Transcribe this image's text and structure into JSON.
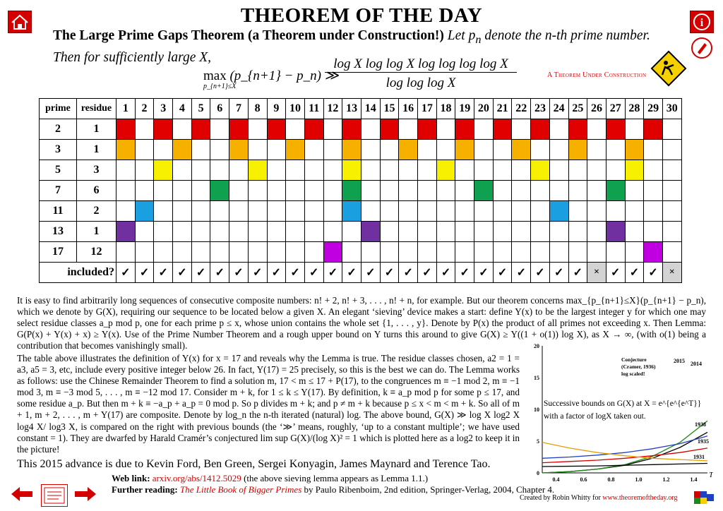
{
  "header": {
    "title": "THEOREM OF THE DAY",
    "theorem_name": "The Large Prime Gaps Theorem (a Theorem under Construction!)",
    "statement_1": "Let",
    "statement_2": "denote the n-th prime number. Then for sufficiently large X,",
    "under_construction": "A Theorem Under Construction"
  },
  "formula": {
    "lhs": "max",
    "lhs_sub": "p_{n+1}≤X",
    "lhs_body": "(p_{n+1} − p_n) ≫",
    "numerator": "log X log log X log log log log X",
    "denominator": "log log log X"
  },
  "table": {
    "col_prime": "prime",
    "col_residue": "residue",
    "columns": [
      "1",
      "2",
      "3",
      "4",
      "5",
      "6",
      "7",
      "8",
      "9",
      "10",
      "11",
      "12",
      "13",
      "14",
      "15",
      "16",
      "17",
      "18",
      "19",
      "20",
      "21",
      "22",
      "23",
      "24",
      "25",
      "26",
      "27",
      "28",
      "29",
      "30"
    ],
    "rows": [
      {
        "prime": "2",
        "residue": "1",
        "color": "#e00000",
        "cells": [
          1,
          3,
          5,
          7,
          9,
          11,
          13,
          15,
          17,
          19,
          21,
          23,
          25,
          27,
          29
        ]
      },
      {
        "prime": "3",
        "residue": "1",
        "color": "#f5b000",
        "cells": [
          1,
          4,
          7,
          10,
          13,
          16,
          19,
          22,
          25,
          28
        ]
      },
      {
        "prime": "5",
        "residue": "3",
        "color": "#f7f000",
        "cells": [
          3,
          8,
          13,
          18,
          23,
          28
        ]
      },
      {
        "prime": "7",
        "residue": "6",
        "color": "#0fa050",
        "cells": [
          6,
          13,
          20,
          27
        ]
      },
      {
        "prime": "11",
        "residue": "2",
        "color": "#1aa0e0",
        "cells": [
          2,
          13,
          24
        ]
      },
      {
        "prime": "13",
        "residue": "1",
        "color": "#7030a0",
        "cells": [
          1,
          14,
          27
        ]
      },
      {
        "prime": "17",
        "residue": "12",
        "color": "#c000e0",
        "cells": [
          12,
          29
        ]
      }
    ],
    "included_label": "included?",
    "check": "✓",
    "cross": "×",
    "excluded": [
      26,
      30
    ]
  },
  "text": {
    "p1": "It is easy to find arbitrarily long sequences of consecutive composite numbers: n! + 2, n! + 3, . . . , n! + n, for example. But our theorem concerns max_{p_{n+1}≤X}(p_{n+1} − p_n), which we denote by G(X), requiring our sequence to be located below a given X. An elegant ‘sieving’ device makes a start: define Y(x) to be the largest integer y for which one may select residue classes a_p mod p, one for each prime p ≤ x, whose union contains the whole set {1, . . . , y}. Denote by P(x) the product of all primes not exceeding x. Then Lemma: G(P(x) + Y(x) + x) ≥ Y(x). Use of the Prime Number Theorem and a rough upper bound on Y turns this around to give G(X) ≥ Y((1 + o(1)) log X), as X → ∞, (with o(1) being a contribution that becomes vanishingly small).",
    "p2": "The table above illustrates the definition of Y(x) for x = 17 and reveals why the Lemma is true. The residue classes chosen, a2 = 1 = a3, a5 = 3, etc, include every positive integer below 26. In fact, Y(17) = 25 precisely, so this is the best we can do. The Lemma works as follows: use the Chinese Remainder Theorem to find a solution m, 17 < m ≤ 17 + P(17), to the congruences m ≡ −1 mod 2, m ≡ −1 mod 3, m ≡ −3 mod 5, . . . , m ≡ −12 mod 17. Consider m + k, for 1 ≤ k ≤ Y(17). By definition, k ≡ a_p mod p for some p ≤ 17, and some residue a_p. But then m + k ≡ −a_p + a_p = 0 mod p. So p divides m + k; and p ≠ m + k because p ≤ x < m < m + k. So all of m + 1, m + 2, . . . , m + Y(17) are composite.",
    "p3": "Denote by log_n the n-th iterated (natural) log. The above bound, G(X) ≫ log X log2 X log4 X/ log3 X, is compared on the right with previous bounds (the ‘≫’ means, roughly, ‘up to a constant multiple’; we have used constant = 1). They are dwarfed by Harald Cramér’s conjectured lim sup G(X)/(log X)² = 1 which is plotted here as a log2 to keep it in the picture!",
    "advance": "This 2015 advance is due to Kevin Ford, Ben Green, Sergei Konyagin, James Maynard and Terence Tao.",
    "web_label": "Web link:",
    "web_url": "arxiv.org/abs/1412.5029",
    "web_note": "(the above sieving lemma appears as Lemma 1.1.)",
    "further_label": "Further reading:",
    "further_title": "The Little Book of Bigger Primes",
    "further_rest": "by Paulo Ribenboim, 2nd edition, Springer-Verlag, 2004, Chapter 4.",
    "credit": "Created by Robin Whitty for",
    "credit_url": "www.theoremoftheday.org"
  },
  "chart_data": {
    "type": "line",
    "x_axis_label": "T",
    "xticks": [
      "0.4",
      "0.6",
      "0.8",
      "1.0",
      "1.2",
      "1.4"
    ],
    "yticks": [
      "0",
      "5",
      "10",
      "15",
      "20"
    ],
    "xlim": [
      0.3,
      1.5
    ],
    "ylim": [
      0,
      20
    ],
    "caption_1": "Successive bounds on G(X) at X = e^{e^{e^T}}",
    "caption_2": "with a factor of logX taken out.",
    "conjecture_label": "Conjecture (Cramer, 1936), log scaled!",
    "series": [
      {
        "name": "2015",
        "color": "#000000",
        "x": [
          0.3,
          0.5,
          0.7,
          0.9,
          1.1,
          1.3,
          1.5
        ],
        "y": [
          0.0,
          0.2,
          0.6,
          1.2,
          2.3,
          4.0,
          6.4
        ]
      },
      {
        "name": "2014",
        "color": "#1a8a1a",
        "x": [
          0.3,
          0.5,
          0.7,
          0.9,
          1.1,
          1.3,
          1.5
        ],
        "y": [
          0.0,
          0.2,
          0.6,
          1.3,
          2.6,
          4.8,
          8.2
        ]
      },
      {
        "name": "1938",
        "color": "#2040c0",
        "x": [
          0.3,
          0.5,
          0.7,
          0.9,
          1.1,
          1.3,
          1.5
        ],
        "y": [
          2.3,
          2.5,
          2.8,
          3.2,
          3.8,
          4.6,
          5.8
        ]
      },
      {
        "name": "1935",
        "color": "#d40000",
        "x": [
          0.3,
          0.5,
          0.7,
          0.9,
          1.1,
          1.3,
          1.5
        ],
        "y": [
          1.6,
          1.8,
          2.0,
          2.3,
          2.7,
          3.2,
          3.9
        ]
      },
      {
        "name": "1931",
        "color": "#000000",
        "x": [
          0.3,
          0.5,
          0.7,
          0.9,
          1.1,
          1.3,
          1.5
        ],
        "y": [
          1.0,
          1.05,
          1.1,
          1.2,
          1.3,
          1.4,
          1.5
        ]
      },
      {
        "name": "Conjecture",
        "color": "#e0a000",
        "x": [
          0.3,
          0.5,
          0.7,
          0.9,
          1.1,
          1.3,
          1.5
        ],
        "y": [
          4.8,
          3.9,
          3.2,
          2.7,
          2.3,
          2.1,
          1.9
        ]
      }
    ]
  }
}
